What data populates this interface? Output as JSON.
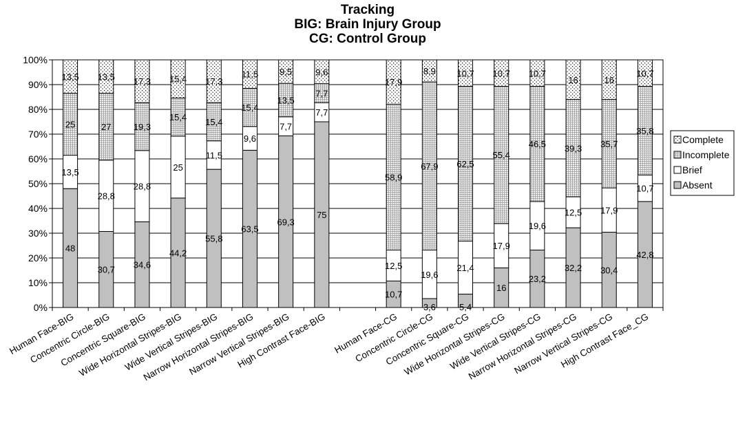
{
  "chart_data": {
    "type": "bar",
    "stacked": true,
    "normalized_percent": true,
    "title": [
      "Tracking",
      "BIG: Brain Injury Group",
      "CG: Control Group"
    ],
    "xlabel": "",
    "ylabel": "",
    "ylim": [
      0,
      100
    ],
    "y_ticks": [
      "0%",
      "10%",
      "20%",
      "30%",
      "40%",
      "50%",
      "60%",
      "70%",
      "80%",
      "90%",
      "100%"
    ],
    "grid": "horizontal",
    "legend_position": "right",
    "categories": [
      "Human Face-BIG",
      "Concentric Circle-BIG",
      "Concentric Square-BIG",
      "Wide Horizontal Stripes-BIG",
      "Wide Vertical Stripes-BIG",
      "Narrow Horizontal Stripes-BIG",
      "Narrow Vertical Stripes-BIG",
      "High Contrast Face-BIG",
      "",
      "Human Face-CG",
      "Concentric Circle-CG",
      "Concentric Square-CG",
      "Wide Horizontal Stripes-CG",
      "Wide Vertical Stripes-CG",
      "Narrow Horizontal Stripes-CG",
      "Narrow Vertical Stripes-CG",
      "High Contrast Face_CG"
    ],
    "series": [
      {
        "name": "Absent",
        "pattern": "solid-gray",
        "color": "#c0c0c0",
        "values": [
          48,
          30.7,
          34.6,
          44.2,
          55.8,
          63.5,
          69.3,
          75,
          null,
          10.7,
          3.6,
          5.4,
          16,
          23.2,
          32.2,
          30.4,
          42.8
        ],
        "labels": [
          "48",
          "30,7",
          "34,6",
          "44,2",
          "55,8",
          "63,5",
          "69,3",
          "75",
          "",
          "10,7",
          "3,6",
          "5,4",
          "16",
          "23,2",
          "32,2",
          "30,4",
          "42,8"
        ]
      },
      {
        "name": "Brief",
        "pattern": "white",
        "color": "#ffffff",
        "values": [
          13.5,
          28.8,
          28.8,
          25,
          11.5,
          9.6,
          7.7,
          7.7,
          null,
          12.5,
          19.6,
          21.4,
          17.9,
          19.6,
          12.5,
          17.9,
          10.7
        ],
        "labels": [
          "13,5",
          "28,8",
          "28,8",
          "25",
          "11,5",
          "9,6",
          "7,7",
          "7,7",
          "",
          "12,5",
          "19,6",
          "21,4",
          "17,9",
          "19,6",
          "12,5",
          "17,9",
          "10,7"
        ]
      },
      {
        "name": "Incomplete",
        "pattern": "grid",
        "color": "#d8d8d8",
        "values": [
          25,
          27,
          19.3,
          15.4,
          15.4,
          15.4,
          13.5,
          7.7,
          null,
          58.9,
          67.9,
          62.5,
          55.4,
          46.5,
          39.3,
          35.7,
          35.8
        ],
        "labels": [
          "25",
          "27",
          "19,3",
          "15,4",
          "15,4",
          "15,4",
          "13,5",
          "7,7",
          "",
          "58,9",
          "67,9",
          "62,5",
          "55,4",
          "46,5",
          "39,3",
          "35,7",
          "35,8"
        ]
      },
      {
        "name": "Complete",
        "pattern": "dots",
        "color": "#ffffff",
        "values": [
          13.5,
          13.5,
          17.3,
          15.4,
          17.3,
          11.5,
          9.5,
          9.6,
          null,
          17.9,
          8.9,
          10.7,
          10.7,
          10.7,
          16,
          16,
          10.7
        ],
        "labels": [
          "13,5",
          "13,5",
          "17,3",
          "15,4",
          "17,3",
          "11,5",
          "9,5",
          "9,6",
          "",
          "17,9",
          "8,9",
          "10,7",
          "10,7",
          "10,7",
          "16",
          "16",
          "10,7"
        ]
      }
    ],
    "legend": [
      "Complete",
      "Incomplete",
      "Brief",
      "Absent"
    ]
  }
}
